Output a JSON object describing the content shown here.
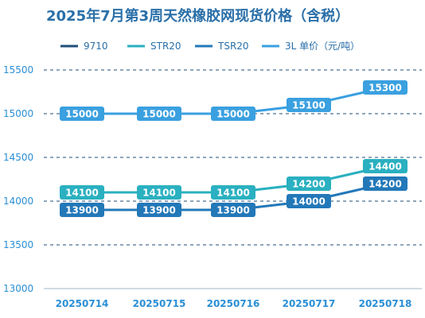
{
  "chart_data": {
    "type": "line",
    "title": "2025年7月第3周天然橡胶网现货价格（含税）",
    "categories": [
      "20250714",
      "20250715",
      "20250716",
      "20250717",
      "20250718"
    ],
    "ylim": [
      13000,
      15500
    ],
    "yticks": [
      13000,
      13500,
      14000,
      14500,
      15000,
      15500
    ],
    "grid": true,
    "legend_position": "top",
    "series": [
      {
        "name": "9710",
        "color": "#1f4f7a",
        "values": [
          null,
          null,
          null,
          null,
          null
        ]
      },
      {
        "name": "STR20",
        "color": "#2ab0c0",
        "values": [
          14100,
          14100,
          14100,
          14200,
          14400
        ]
      },
      {
        "name": "TSR20",
        "color": "#2378b8",
        "values": [
          13900,
          13900,
          13900,
          14000,
          14200
        ]
      },
      {
        "name": "3L 单价（元/吨）",
        "color": "#3aa0e0",
        "values": [
          15000,
          15000,
          15000,
          15100,
          15300
        ]
      }
    ]
  }
}
